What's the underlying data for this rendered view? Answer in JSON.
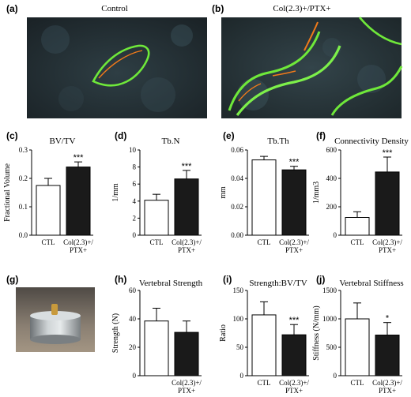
{
  "images": [
    {
      "label": "(a)",
      "title": "Control"
    },
    {
      "label": "(b)",
      "title": "Col(2.3)+/PTX+"
    },
    {
      "label": "(g)",
      "title": ""
    }
  ],
  "colors": {
    "ctl_bar": "#ffffff",
    "treated_bar": "#1a1a1a",
    "axis": "#000000",
    "green_fluor": "#6fe83a",
    "orange_fluor": "#f07a1a"
  },
  "chart_data": [
    {
      "panel": "(c)",
      "type": "bar",
      "title": "BV/TV",
      "ylabel": "Fractional Volume",
      "categories": [
        "CTL",
        "Col(2.3)+/\nPTX+"
      ],
      "values": [
        0.175,
        0.24
      ],
      "errors": [
        0.025,
        0.018
      ],
      "ylim": [
        0,
        0.3
      ],
      "yticks": [
        "0.0",
        "0.1",
        "0.2",
        "0.3"
      ],
      "significance": [
        "",
        "***"
      ]
    },
    {
      "panel": "(d)",
      "type": "bar",
      "title": "Tb.N",
      "ylabel": "1/mm",
      "categories": [
        "CTL",
        "Col(2.3)+/\nPTX+"
      ],
      "values": [
        4.1,
        6.6
      ],
      "errors": [
        0.7,
        1.0
      ],
      "ylim": [
        0,
        10
      ],
      "yticks": [
        "0",
        "2",
        "4",
        "6",
        "8",
        "10"
      ],
      "significance": [
        "",
        "***"
      ]
    },
    {
      "panel": "(e)",
      "type": "bar",
      "title": "Tb.Th",
      "ylabel": "mm",
      "categories": [
        "CTL",
        "Col(2.3)+/\nPTX+"
      ],
      "values": [
        0.053,
        0.046
      ],
      "errors": [
        0.0025,
        0.0025
      ],
      "ylim": [
        0,
        0.06
      ],
      "yticks": [
        "0.00",
        "0.02",
        "0.04",
        "0.06"
      ],
      "significance": [
        "",
        "***"
      ]
    },
    {
      "panel": "(f)",
      "type": "bar",
      "title": "Connectivity Density",
      "ylabel": "1/mm3",
      "categories": [
        "CTL",
        "Col(2.3)+/\nPTX+"
      ],
      "values": [
        125,
        445
      ],
      "errors": [
        40,
        105
      ],
      "ylim": [
        0,
        600
      ],
      "yticks": [
        "0",
        "200",
        "400",
        "600"
      ],
      "significance": [
        "",
        "***"
      ]
    },
    {
      "panel": "(h)",
      "type": "bar",
      "title": "Vertebral Strength",
      "ylabel": "Strength (N)",
      "categories": [
        "",
        "Col(2.3)+/\nPTX+"
      ],
      "values": [
        38.5,
        30.5
      ],
      "errors": [
        9,
        8
      ],
      "ylim": [
        0,
        60
      ],
      "yticks": [
        "0",
        "20",
        "40",
        "60"
      ],
      "significance": [
        "",
        ""
      ]
    },
    {
      "panel": "(i)",
      "type": "bar",
      "title": "Strength:BV/TV",
      "ylabel": "Ratio",
      "categories": [
        "CTL",
        "Col(2.3)+/\nPTX+"
      ],
      "values": [
        107,
        72
      ],
      "errors": [
        23,
        18
      ],
      "ylim": [
        0,
        150
      ],
      "yticks": [
        "0",
        "50",
        "100",
        "150"
      ],
      "significance": [
        "",
        "***"
      ]
    },
    {
      "panel": "(j)",
      "type": "bar",
      "title": "Vertebral Stiffness",
      "ylabel": "Stiffness (N/mm)",
      "categories": [
        "CTL",
        "Col(2.3)+/\nPTX+"
      ],
      "values": [
        1000,
        715
      ],
      "errors": [
        280,
        220
      ],
      "ylim": [
        0,
        1500
      ],
      "yticks": [
        "0",
        "500",
        "1000",
        "1500"
      ],
      "significance": [
        "",
        "*"
      ]
    }
  ]
}
